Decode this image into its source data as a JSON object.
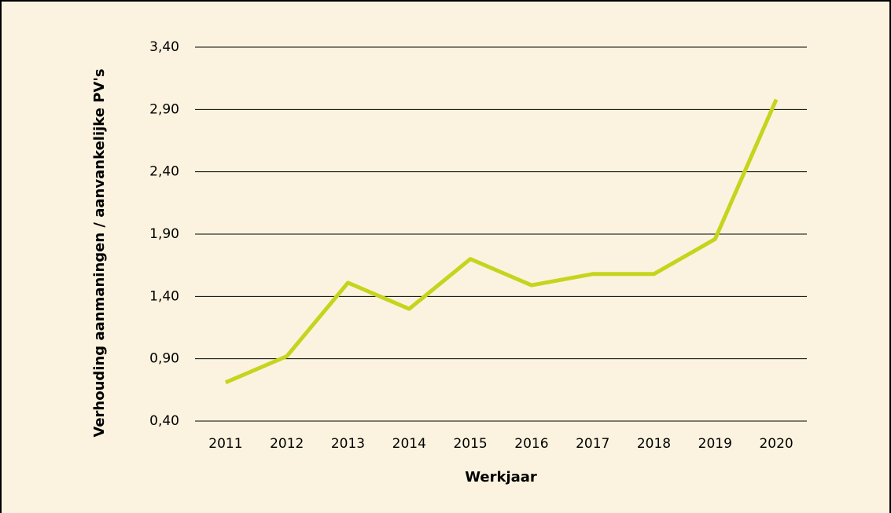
{
  "chart_data": {
    "type": "line",
    "x_label": "Werkjaar",
    "y_label": "Verhouding aanmaningen / aanvankelijke PV's",
    "categories": [
      "2011",
      "2012",
      "2013",
      "2014",
      "2015",
      "2016",
      "2017",
      "2018",
      "2019",
      "2020"
    ],
    "series": [
      {
        "name": "Verhouding",
        "color": "#c6d41d",
        "values": [
          0.71,
          0.92,
          1.51,
          1.3,
          1.7,
          1.49,
          1.58,
          1.58,
          1.86,
          2.98
        ]
      }
    ],
    "ylim": [
      0.4,
      3.4
    ],
    "yticks": [
      {
        "value": 0.4,
        "label": "0,40"
      },
      {
        "value": 0.9,
        "label": "0,90"
      },
      {
        "value": 1.4,
        "label": "1,40"
      },
      {
        "value": 1.9,
        "label": "1,90"
      },
      {
        "value": 2.4,
        "label": "2,40"
      },
      {
        "value": 2.9,
        "label": "2,90"
      },
      {
        "value": 3.4,
        "label": "3,40"
      }
    ],
    "grid": true
  }
}
